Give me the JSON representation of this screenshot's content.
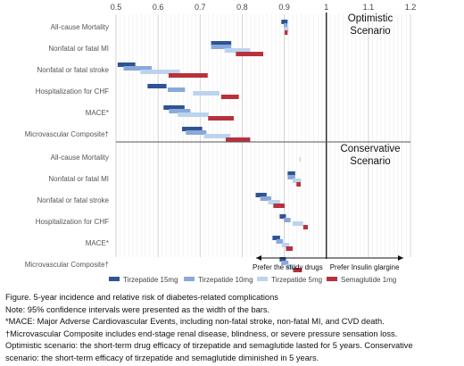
{
  "chart_data": {
    "type": "bar",
    "x_axis": {
      "ticks": [
        "0.5",
        "0.6",
        "0.7",
        "0.8",
        "0.9",
        "1",
        "1.1",
        "1.2"
      ],
      "xlim": [
        0.5,
        1.2
      ],
      "reference": 1.0
    },
    "panels": [
      {
        "label": "Optimistic Scenario",
        "label_lines": [
          "Optimistic",
          "Scenario"
        ],
        "categories": [
          "All-cause Mortality",
          "Nonfatal or fatal MI",
          "Nonfatal or fatal stroke",
          "Hospitalization for CHF",
          "MACE*",
          "Microvascular Composite†"
        ],
        "series": [
          {
            "name": "Tirzepatide 15mg",
            "ranges": [
              [
                0.893,
                0.908
              ],
              [
                0.726,
                0.774
              ],
              [
                0.504,
                0.546
              ],
              [
                0.575,
                0.62
              ],
              [
                0.613,
                0.663
              ],
              [
                0.657,
                0.705
              ]
            ]
          },
          {
            "name": "Tirzepatide 10mg",
            "ranges": [
              [
                0.899,
                0.908
              ],
              [
                0.726,
                0.774
              ],
              [
                0.518,
                0.585
              ],
              [
                0.623,
                0.664
              ],
              [
                0.626,
                0.677
              ],
              [
                0.666,
                0.715
              ]
            ]
          },
          {
            "name": "Tirzepatide 5mg",
            "ranges": [
              [
                0.901,
                0.91
              ],
              [
                0.758,
                0.819
              ],
              [
                0.558,
                0.652
              ],
              [
                0.683,
                0.746
              ],
              [
                0.647,
                0.72
              ],
              [
                0.709,
                0.772
              ]
            ]
          },
          {
            "name": "Semaglutide 1mg",
            "ranges": [
              [
                0.901,
                0.908
              ],
              [
                0.785,
                0.85
              ],
              [
                0.625,
                0.718
              ],
              [
                0.75,
                0.792
              ],
              [
                0.719,
                0.78
              ],
              [
                0.761,
                0.819
              ]
            ]
          }
        ]
      },
      {
        "label": "Conservative Scenario",
        "label_lines": [
          "Conservative",
          "Scenario"
        ],
        "categories": [
          "All-cause Mortality",
          "Nonfatal or fatal MI",
          "Nonfatal or fatal stroke",
          "Hospitalization for CHF",
          "MACE*",
          "Microvascular Composite†"
        ],
        "series": [
          {
            "name": "Tirzepatide 15mg",
            "ranges": [
              null,
              [
                0.908,
                0.926
              ],
              [
                0.832,
                0.858
              ],
              [
                0.889,
                0.904
              ],
              [
                0.872,
                0.89
              ],
              [
                0.889,
                0.904
              ]
            ]
          },
          {
            "name": "Tirzepatide 10mg",
            "ranges": [
              null,
              [
                0.908,
                0.926
              ],
              [
                0.843,
                0.869
              ],
              [
                0.899,
                0.915
              ],
              [
                0.881,
                0.897
              ],
              [
                0.893,
                0.91
              ]
            ]
          },
          {
            "name": "Tirzepatide 5mg",
            "ranges": [
              [
                0.936,
                0.938
              ],
              [
                0.92,
                0.94
              ],
              [
                0.862,
                0.89
              ],
              [
                0.92,
                0.945
              ],
              [
                0.894,
                0.912
              ],
              [
                0.903,
                0.927
              ]
            ]
          },
          {
            "name": "Semaglutide 1mg",
            "ranges": [
              null,
              [
                0.929,
                0.939
              ],
              [
                0.874,
                0.901
              ],
              [
                0.945,
                0.956
              ],
              [
                0.904,
                0.92
              ],
              [
                0.921,
                0.942
              ]
            ]
          }
        ]
      }
    ],
    "legend": [
      {
        "name": "Tirzepatide 15mg",
        "color": "#2e5494"
      },
      {
        "name": "Tirzepatide 10mg",
        "color": "#8aa8da"
      },
      {
        "name": "Tirzepatide 5mg",
        "color": "#bcd3ee"
      },
      {
        "name": "Semaglutide 1mg",
        "color": "#b8313c"
      }
    ],
    "direction_labels": {
      "left": "Prefer the study drugs",
      "right": "Prefer Insulin glargine"
    },
    "grid": true,
    "legend_position": "bottom"
  },
  "caption": [
    "Figure. 5-year incidence and relative risk of diabetes-related complications",
    "Note: 95% confidence intervals were presented as the width of the bars.",
    "*MACE: Major Adverse Cardiovascular Events, including non-fatal stroke, non-fatal MI, and CVD death.",
    "†Microvascular Composite includes end-stage renal disease, blindness, or severe pressure sensation loss.",
    "Optimistic scenario: the short-term drug efficacy of tirzepatide and semaglutide lasted for 5 years. Conservative",
    "scenario: the short-term efficacy of tirzepatide and semaglutide diminished in 5 years."
  ]
}
